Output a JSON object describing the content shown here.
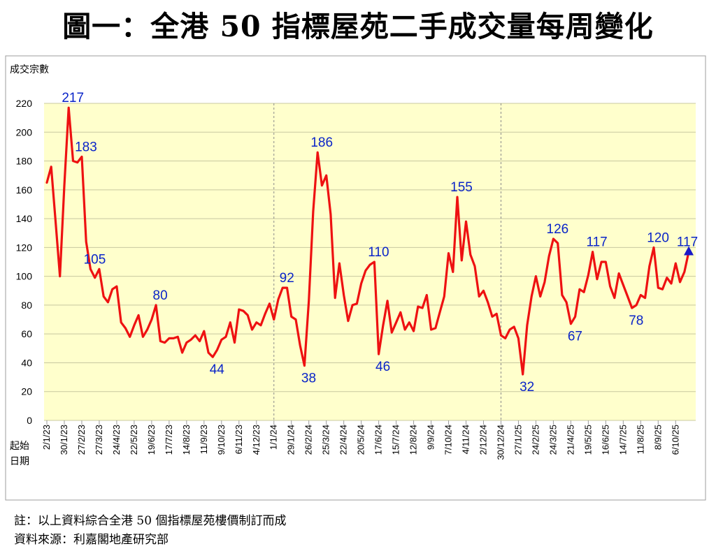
{
  "header": {
    "title": "圖一：全港 50 指標屋苑二手成交量每周變化"
  },
  "footer": {
    "note": "註：以上資料綜合全港 50 個指標屋苑樓價制訂而成",
    "source": "資料來源：利嘉閣地產研究部"
  },
  "chart_data": {
    "type": "line",
    "title": "",
    "ylabel": "成交宗數",
    "xlabel": "起始日期",
    "ylim": [
      0,
      220
    ],
    "yticks": [
      0,
      20,
      40,
      60,
      80,
      100,
      120,
      140,
      160,
      180,
      200,
      220
    ],
    "xtick_labels": [
      "2/1/23",
      "30/1/23",
      "27/2/23",
      "27/3/23",
      "24/4/23",
      "22/5/23",
      "19/6/23",
      "17/7/23",
      "14/8/23",
      "11/9/23",
      "9/10/23",
      "6/11/23",
      "4/12/23",
      "1/1/24",
      "29/1/24",
      "26/2/24",
      "25/3/24",
      "22/4/24",
      "20/5/24",
      "17/6/24",
      "15/7/24",
      "12/8/24",
      "9/9/24",
      "7/10/24",
      "4/11/24",
      "2/12/24",
      "30/12/24",
      "27/1/25",
      "24/2/25",
      "24/3/25",
      "21/4/25",
      "19/5/25",
      "16/6/25",
      "14/7/25",
      "11/8/25",
      "8/9/25",
      "6/10/25"
    ],
    "grid": true,
    "year_dividers": [
      "1/1/24",
      "30/12/24"
    ],
    "colors": {
      "line": "#ee1111",
      "annotation": "#0a24c8",
      "background": "#ffffcc",
      "grid": "#c8c8a0",
      "last_marker": "#1a1ac8"
    },
    "series": [
      {
        "name": "",
        "values": [
          165,
          176,
          138,
          100,
          163,
          217,
          180,
          179,
          183,
          124,
          105,
          99,
          105,
          86,
          82,
          91,
          93,
          68,
          64,
          58,
          66,
          73,
          58,
          63,
          70,
          80,
          55,
          54,
          57,
          57,
          58,
          47,
          54,
          56,
          59,
          55,
          62,
          47,
          44,
          49,
          56,
          58,
          68,
          54,
          77,
          76,
          73,
          63,
          68,
          66,
          74,
          81,
          70,
          84,
          92,
          92,
          72,
          70,
          52,
          38,
          83,
          145,
          186,
          163,
          170,
          143,
          85,
          109,
          87,
          69,
          80,
          81,
          95,
          104,
          108,
          110,
          46,
          66,
          83,
          61,
          68,
          75,
          63,
          68,
          62,
          79,
          78,
          87,
          63,
          64,
          75,
          86,
          116,
          103,
          155,
          111,
          138,
          115,
          107,
          86,
          90,
          82,
          72,
          74,
          59,
          57,
          63,
          65,
          57,
          32,
          66,
          86,
          100,
          86,
          96,
          114,
          126,
          123,
          87,
          82,
          67,
          72,
          91,
          89,
          101,
          117,
          98,
          110,
          110,
          93,
          85,
          102,
          94,
          86,
          78,
          80,
          87,
          85,
          107,
          120,
          92,
          91,
          99,
          95,
          109,
          96,
          103,
          117
        ]
      }
    ],
    "annotations": [
      {
        "text": "217",
        "value": 217
      },
      {
        "text": "183",
        "value": 183
      },
      {
        "text": "105",
        "value": 105
      },
      {
        "text": "80",
        "value": 80
      },
      {
        "text": "44",
        "value": 44
      },
      {
        "text": "92",
        "value": 92
      },
      {
        "text": "38",
        "value": 38
      },
      {
        "text": "186",
        "value": 186
      },
      {
        "text": "110",
        "value": 110
      },
      {
        "text": "46",
        "value": 46
      },
      {
        "text": "155",
        "value": 155
      },
      {
        "text": "32",
        "value": 32
      },
      {
        "text": "126",
        "value": 126
      },
      {
        "text": "67",
        "value": 67
      },
      {
        "text": "117",
        "value": 117
      },
      {
        "text": "78",
        "value": 78
      },
      {
        "text": "120",
        "value": 120
      },
      {
        "text": "117",
        "value": 117
      }
    ]
  }
}
